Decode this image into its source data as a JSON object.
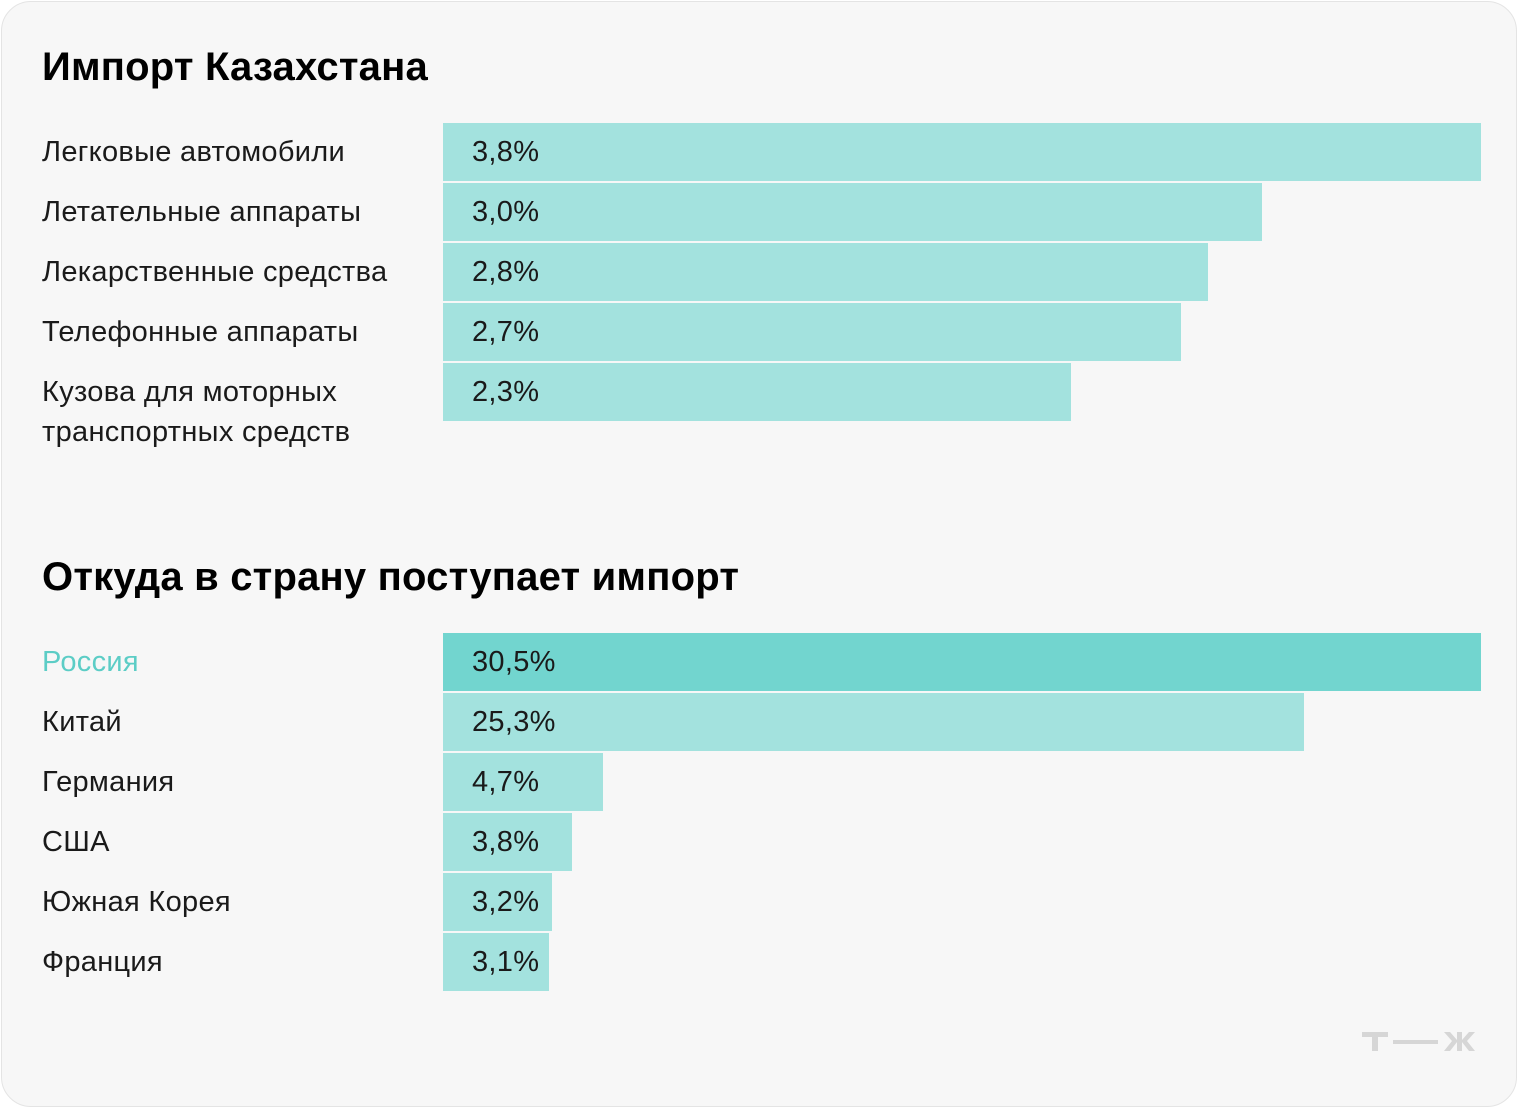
{
  "colors": {
    "bar": "#a3e2de",
    "bar_highlight": "#72d5cf",
    "label_highlight": "#5ccdc6",
    "logo": "#d6d6d6"
  },
  "logo": {
    "text": "т—ж",
    "icon": "tzh-logo-icon"
  },
  "chart_data": [
    {
      "type": "bar",
      "orientation": "horizontal",
      "title": "Импорт Казахстана",
      "categories": [
        "Легковые автомобили",
        "Летательные аппараты",
        "Лекарственные средства",
        "Телефонные аппараты",
        "Кузова для моторных транспортных средств"
      ],
      "values": [
        3.8,
        3.0,
        2.8,
        2.7,
        2.3
      ],
      "value_labels": [
        "3,8%",
        "3,0%",
        "2,8%",
        "2,7%",
        "2,3%"
      ],
      "xlim": [
        0,
        3.8
      ],
      "highlight": [],
      "grid": false,
      "legend": "none"
    },
    {
      "type": "bar",
      "orientation": "horizontal",
      "title": "Откуда в страну поступает импорт",
      "categories": [
        "Россия",
        "Китай",
        "Германия",
        "США",
        "Южная Корея",
        "Франция"
      ],
      "values": [
        30.5,
        25.3,
        4.7,
        3.8,
        3.2,
        3.1
      ],
      "value_labels": [
        "30,5%",
        "25,3%",
        "4,7%",
        "3,8%",
        "3,2%",
        "3,1%"
      ],
      "xlim": [
        0,
        30.5
      ],
      "highlight": [
        0
      ],
      "grid": false,
      "legend": "none"
    }
  ]
}
